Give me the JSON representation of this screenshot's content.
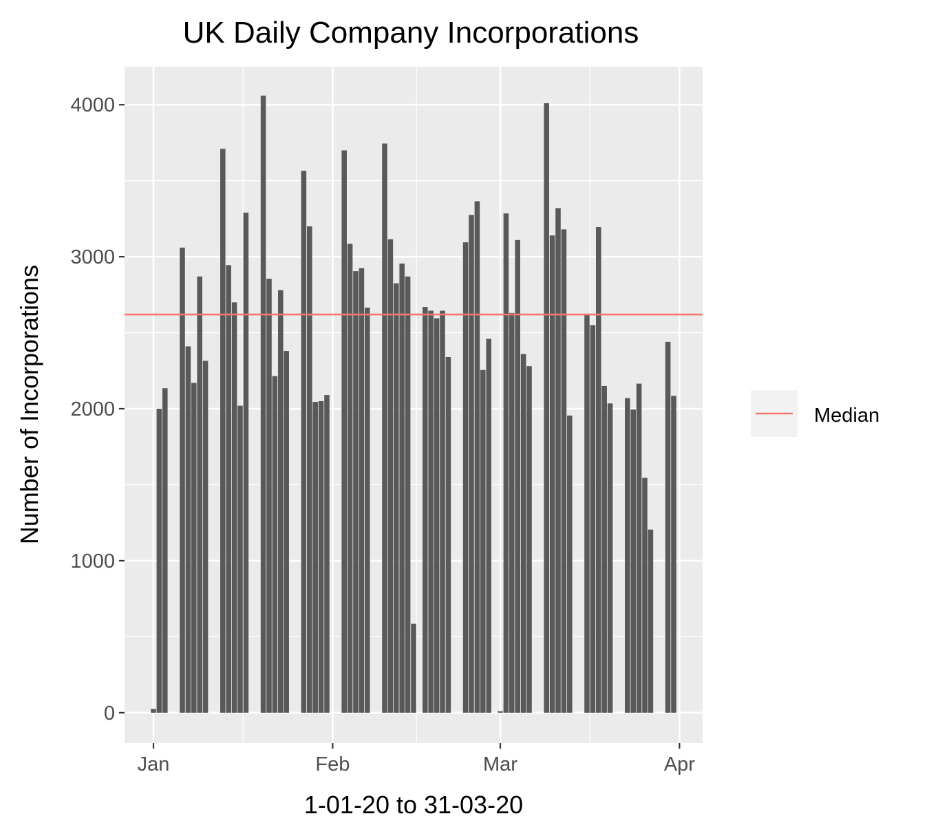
{
  "chart_data": {
    "type": "bar",
    "title": "UK Daily Company Incorporations",
    "xlabel": "1-01-20 to 31-03-20",
    "ylabel": "Number of Incorporations",
    "x_ticks": [
      {
        "label": "Jan",
        "day": 0
      },
      {
        "label": "Feb",
        "day": 31
      },
      {
        "label": "Mar",
        "day": 60
      },
      {
        "label": "Apr",
        "day": 91
      }
    ],
    "y_ticks": [
      0,
      1000,
      2000,
      3000,
      4000
    ],
    "xlim": [
      -5,
      95
    ],
    "ylim": [
      -200,
      4250
    ],
    "grid": true,
    "legend_position": "right",
    "legend": [
      {
        "name": "Median",
        "color": "#f8766d"
      }
    ],
    "median": 2620,
    "bar_color": "#595959",
    "series": [
      {
        "x": [
          "2020-01-01",
          "2020-01-02",
          "2020-01-03",
          "2020-01-04",
          "2020-01-05",
          "2020-01-06",
          "2020-01-07",
          "2020-01-08",
          "2020-01-09",
          "2020-01-10",
          "2020-01-11",
          "2020-01-12",
          "2020-01-13",
          "2020-01-14",
          "2020-01-15",
          "2020-01-16",
          "2020-01-17",
          "2020-01-18",
          "2020-01-19",
          "2020-01-20",
          "2020-01-21",
          "2020-01-22",
          "2020-01-23",
          "2020-01-24",
          "2020-01-25",
          "2020-01-26",
          "2020-01-27",
          "2020-01-28",
          "2020-01-29",
          "2020-01-30",
          "2020-01-31",
          "2020-02-01",
          "2020-02-02",
          "2020-02-03",
          "2020-02-04",
          "2020-02-05",
          "2020-02-06",
          "2020-02-07",
          "2020-02-08",
          "2020-02-09",
          "2020-02-10",
          "2020-02-11",
          "2020-02-12",
          "2020-02-13",
          "2020-02-14",
          "2020-02-15",
          "2020-02-16",
          "2020-02-17",
          "2020-02-18",
          "2020-02-19",
          "2020-02-20",
          "2020-02-21",
          "2020-02-22",
          "2020-02-23",
          "2020-02-24",
          "2020-02-25",
          "2020-02-26",
          "2020-02-27",
          "2020-02-28",
          "2020-02-29",
          "2020-03-01",
          "2020-03-02",
          "2020-03-03",
          "2020-03-04",
          "2020-03-05",
          "2020-03-06",
          "2020-03-07",
          "2020-03-08",
          "2020-03-09",
          "2020-03-10",
          "2020-03-11",
          "2020-03-12",
          "2020-03-13",
          "2020-03-14",
          "2020-03-15",
          "2020-03-16",
          "2020-03-17",
          "2020-03-18",
          "2020-03-19",
          "2020-03-20",
          "2020-03-21",
          "2020-03-22",
          "2020-03-23",
          "2020-03-24",
          "2020-03-25",
          "2020-03-26",
          "2020-03-27",
          "2020-03-28",
          "2020-03-29",
          "2020-03-30",
          "2020-03-31"
        ],
        "values": [
          25,
          2000,
          2135,
          0,
          0,
          3060,
          2410,
          2170,
          2870,
          2315,
          0,
          0,
          3710,
          2945,
          2700,
          2020,
          3290,
          0,
          0,
          4060,
          2855,
          2215,
          2780,
          2380,
          0,
          0,
          3565,
          3200,
          2045,
          2050,
          2090,
          0,
          0,
          3700,
          3085,
          2905,
          2925,
          2665,
          0,
          0,
          3745,
          3115,
          2825,
          2955,
          2870,
          585,
          0,
          2670,
          2645,
          2595,
          2645,
          2340,
          0,
          0,
          3095,
          3275,
          3365,
          2255,
          2460,
          0,
          10,
          3285,
          2630,
          3110,
          2360,
          2280,
          0,
          0,
          4010,
          3140,
          3320,
          3180,
          1955,
          0,
          0,
          2620,
          2550,
          3195,
          2150,
          2035,
          0,
          0,
          2070,
          1995,
          2165,
          1545,
          1205,
          0,
          0,
          2440,
          2085
        ]
      }
    ]
  }
}
